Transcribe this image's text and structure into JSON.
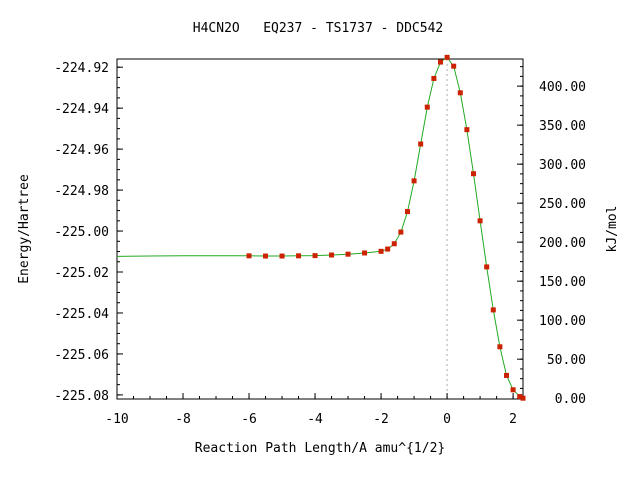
{
  "chart_data": {
    "type": "line",
    "title": "H4CN2O   EQ237 - TS1737 - DDC542",
    "xlabel": "Reaction Path Length/A amu^{1/2}",
    "ylabel": "Energy/Hartree",
    "y2label": "kJ/mol",
    "xlim": [
      -10,
      2.3
    ],
    "ylim": [
      -225.082,
      -224.916
    ],
    "x_ticks": [
      -10,
      -8,
      -6,
      -4,
      -2,
      0,
      2
    ],
    "x_tick_labels": [
      "-10",
      "-8",
      "-6",
      "-4",
      "-2",
      "0",
      "2"
    ],
    "y_ticks": [
      -224.92,
      -224.94,
      -224.96,
      -224.98,
      -225.0,
      -225.02,
      -225.04,
      -225.06,
      -225.08
    ],
    "y_tick_labels": [
      "-224.92",
      "-224.94",
      "-224.96",
      "-224.98",
      "-225.00",
      "-225.02",
      "-225.04",
      "-225.06",
      "-225.08"
    ],
    "y2_ticks": [
      0,
      50,
      100,
      150,
      200,
      250,
      300,
      350,
      400
    ],
    "y2_tick_labels": [
      "0.00",
      "50.00",
      "100.00",
      "150.00",
      "200.00",
      "250.00",
      "300.00",
      "350.00",
      "400.00"
    ],
    "y2_reference_hartree": -225.0816,
    "y2_hartree_to_kj": 2625.5,
    "ts_marker_x": 0,
    "colors": {
      "curve": "#22aa22",
      "points": "#cc2200",
      "ts_line": "#aaaaaa",
      "axes": "#000000"
    },
    "series": [
      {
        "x": [
          -10.0,
          -9.0,
          -8.0,
          -7.0,
          -6.0,
          -5.5,
          -5.0,
          -4.5,
          -4.0,
          -3.5,
          -3.0,
          -2.5,
          -2.0,
          -1.8,
          -1.6,
          -1.4,
          -1.2,
          -1.0,
          -0.8,
          -0.6,
          -0.4,
          -0.2,
          0.0,
          0.2,
          0.4,
          0.6,
          0.8,
          1.0,
          1.2,
          1.4,
          1.6,
          1.8,
          2.0,
          2.2,
          2.3
        ],
        "y": [
          -225.0124,
          -225.0122,
          -225.0121,
          -225.0121,
          -225.0121,
          -225.0122,
          -225.0122,
          -225.0121,
          -225.012,
          -225.0117,
          -225.0113,
          -225.0107,
          -225.0099,
          -225.0088,
          -225.0062,
          -225.0005,
          -224.9905,
          -224.9755,
          -224.9575,
          -224.9395,
          -224.9255,
          -224.9175,
          -224.9152,
          -224.9195,
          -224.9325,
          -224.9505,
          -224.972,
          -224.995,
          -225.0175,
          -225.0385,
          -225.0565,
          -225.0705,
          -225.0775,
          -225.0808,
          -225.0816
        ]
      }
    ]
  }
}
